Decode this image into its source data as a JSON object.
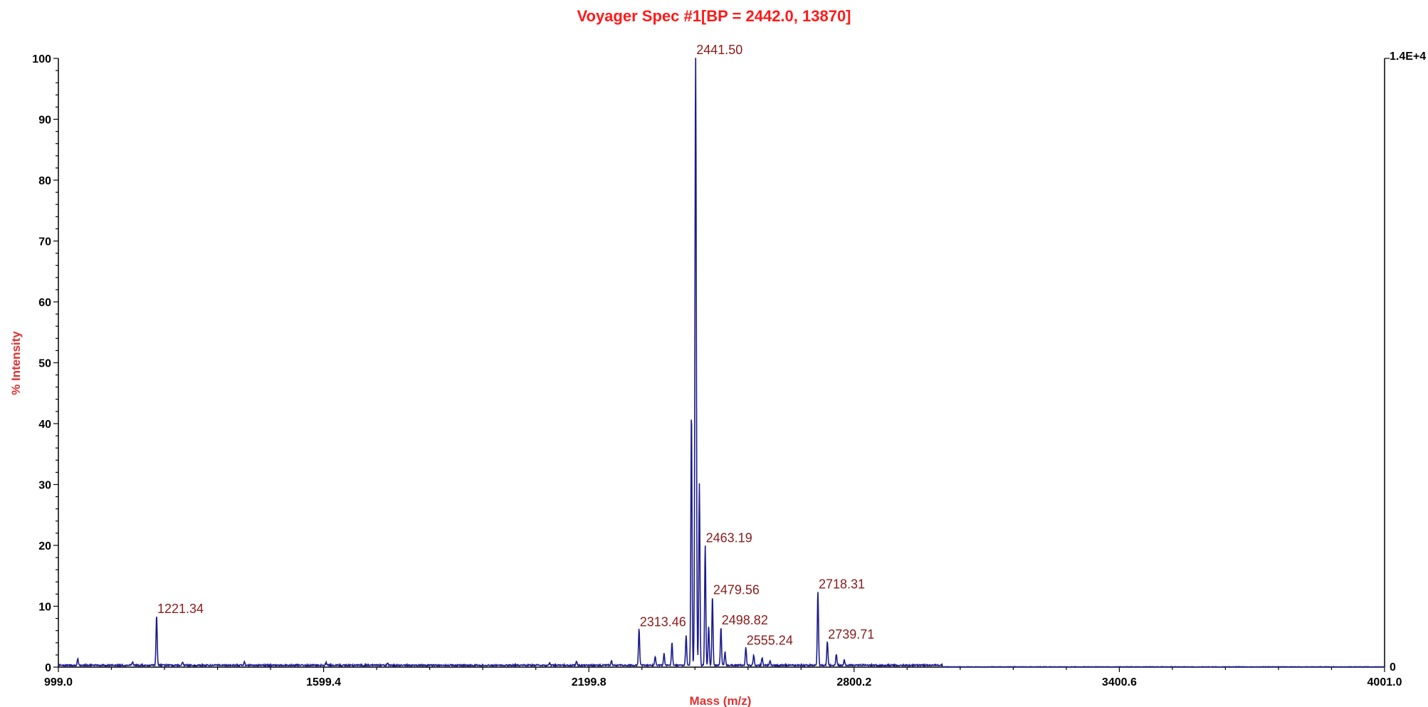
{
  "chart_data": {
    "type": "line",
    "title": "Voyager Spec #1[BP = 2442.0, 13870]",
    "xlabel": "Mass (m/z)",
    "ylabel": "% Intensity",
    "xlim": [
      999.0,
      4001.0
    ],
    "ylim": [
      0,
      100
    ],
    "x_ticks": [
      "999.0",
      "1599.4",
      "2199.8",
      "2800.2",
      "3400.6",
      "4001.0"
    ],
    "x_tick_values": [
      999.0,
      1599.4,
      2199.8,
      2800.2,
      3400.6,
      4001.0
    ],
    "y_ticks": [
      0,
      10,
      20,
      30,
      40,
      50,
      60,
      70,
      80,
      90,
      100
    ],
    "right_axis_labels": {
      "top": "1.4E+4",
      "bottom": "0"
    },
    "line_color": "#1c1c8c",
    "baseline_level": 0.3,
    "peaks": [
      {
        "mz": 1221.34,
        "intensity": 8.2,
        "label": "1221.34"
      },
      {
        "mz": 2313.46,
        "intensity": 6.0,
        "label": "2313.46"
      },
      {
        "mz": 2441.5,
        "intensity": 100,
        "label": "2441.50"
      },
      {
        "mz": 2463.19,
        "intensity": 19.8,
        "label": "2463.19"
      },
      {
        "mz": 2479.56,
        "intensity": 11.3,
        "label": "2479.56"
      },
      {
        "mz": 2498.82,
        "intensity": 6.3,
        "label": "2498.82"
      },
      {
        "mz": 2555.24,
        "intensity": 3.0,
        "label": "2555.24"
      },
      {
        "mz": 2718.31,
        "intensity": 12.2,
        "label": "2718.31"
      },
      {
        "mz": 2739.71,
        "intensity": 4.0,
        "label": "2739.71"
      }
    ],
    "minor_peaks": [
      {
        "mz": 1043.0,
        "intensity": 1.1
      },
      {
        "mz": 1167.0,
        "intensity": 0.6
      },
      {
        "mz": 1280.0,
        "intensity": 0.5
      },
      {
        "mz": 1420.0,
        "intensity": 0.6
      },
      {
        "mz": 1605.0,
        "intensity": 0.5
      },
      {
        "mz": 1744.0,
        "intensity": 0.4
      },
      {
        "mz": 2111.0,
        "intensity": 0.4
      },
      {
        "mz": 2172.0,
        "intensity": 0.6
      },
      {
        "mz": 2251.0,
        "intensity": 0.7
      },
      {
        "mz": 2350.0,
        "intensity": 1.4
      },
      {
        "mz": 2370.0,
        "intensity": 1.9
      },
      {
        "mz": 2388.0,
        "intensity": 3.7
      },
      {
        "mz": 2420.0,
        "intensity": 5.0
      },
      {
        "mz": 2432.0,
        "intensity": 42
      },
      {
        "mz": 2450.0,
        "intensity": 30
      },
      {
        "mz": 2471.0,
        "intensity": 6.5
      },
      {
        "mz": 2508.0,
        "intensity": 2.2
      },
      {
        "mz": 2573.0,
        "intensity": 1.7
      },
      {
        "mz": 2592.0,
        "intensity": 1.3
      },
      {
        "mz": 2610.0,
        "intensity": 0.8
      },
      {
        "mz": 2760.0,
        "intensity": 1.9
      },
      {
        "mz": 2778.0,
        "intensity": 0.8
      }
    ]
  }
}
